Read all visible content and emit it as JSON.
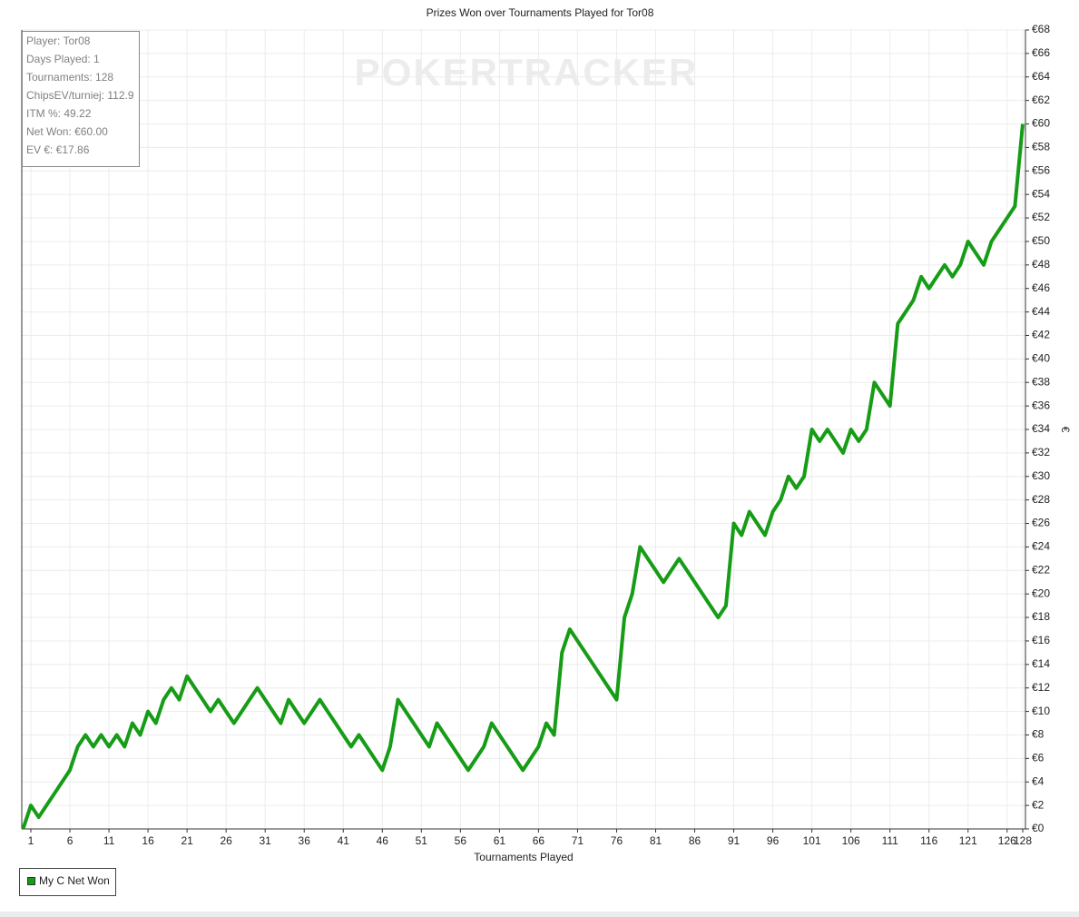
{
  "chart_data": {
    "type": "line",
    "title": "Prizes Won over Tournaments Played for Tor08",
    "watermark": "POKERTRACKER",
    "x_label": "Tournaments Played",
    "y_label": "€",
    "annotations": [
      "Player: Tor08",
      "Days Played: 1",
      "Tournaments: 128",
      "ChipsEV/turniej: 112.9",
      "ITM %: 49.22",
      "Net Won: €60.00",
      "EV €: €17.86"
    ],
    "grid": true,
    "legend": "bottom-left",
    "x": [
      0,
      1,
      2,
      3,
      4,
      5,
      6,
      7,
      8,
      9,
      10,
      11,
      12,
      13,
      14,
      15,
      16,
      17,
      18,
      19,
      20,
      21,
      22,
      23,
      24,
      25,
      26,
      27,
      28,
      29,
      30,
      31,
      32,
      33,
      34,
      35,
      36,
      37,
      38,
      39,
      40,
      41,
      42,
      43,
      44,
      45,
      46,
      47,
      48,
      49,
      50,
      51,
      52,
      53,
      54,
      55,
      56,
      57,
      58,
      59,
      60,
      61,
      62,
      63,
      64,
      65,
      66,
      67,
      68,
      69,
      70,
      71,
      72,
      73,
      74,
      75,
      76,
      77,
      78,
      79,
      80,
      81,
      82,
      83,
      84,
      85,
      86,
      87,
      88,
      89,
      90,
      91,
      92,
      93,
      94,
      95,
      96,
      97,
      98,
      99,
      100,
      101,
      102,
      103,
      104,
      105,
      106,
      107,
      108,
      109,
      110,
      111,
      112,
      113,
      114,
      115,
      116,
      117,
      118,
      119,
      120,
      121,
      122,
      123,
      124,
      125,
      126,
      127,
      128
    ],
    "series": [
      {
        "name": "My C Net Won",
        "color": "#169c16",
        "values": [
          0,
          2,
          1,
          2,
          3,
          4,
          5,
          7,
          8,
          7,
          8,
          7,
          8,
          7,
          9,
          8,
          10,
          9,
          11,
          12,
          11,
          13,
          12,
          11,
          10,
          11,
          10,
          9,
          10,
          11,
          12,
          11,
          10,
          9,
          11,
          10,
          9,
          10,
          11,
          10,
          9,
          8,
          7,
          8,
          7,
          6,
          5,
          7,
          11,
          10,
          9,
          8,
          7,
          9,
          8,
          7,
          6,
          5,
          6,
          7,
          9,
          8,
          7,
          6,
          5,
          6,
          7,
          9,
          8,
          15,
          17,
          16,
          15,
          14,
          13,
          12,
          11,
          18,
          20,
          24,
          23,
          22,
          21,
          22,
          23,
          22,
          21,
          20,
          19,
          18,
          19,
          26,
          25,
          27,
          26,
          25,
          27,
          28,
          30,
          29,
          30,
          34,
          33,
          34,
          33,
          32,
          34,
          33,
          34,
          38,
          37,
          36,
          43,
          44,
          45,
          47,
          46,
          47,
          48,
          47,
          48,
          50,
          49,
          48,
          50,
          51,
          52,
          53,
          60
        ]
      }
    ],
    "xlim": [
      0,
      128
    ],
    "xticks": [
      1,
      6,
      11,
      16,
      21,
      26,
      31,
      36,
      41,
      46,
      51,
      56,
      61,
      66,
      71,
      76,
      81,
      86,
      91,
      96,
      101,
      106,
      111,
      116,
      121,
      126,
      128
    ],
    "ylim": [
      0,
      68
    ],
    "yticks": [
      {
        "value": 0,
        "label": "€0"
      },
      {
        "value": 2,
        "label": "€2"
      },
      {
        "value": 4,
        "label": "€4"
      },
      {
        "value": 6,
        "label": "€6"
      },
      {
        "value": 8,
        "label": "€8"
      },
      {
        "value": 10,
        "label": "€10"
      },
      {
        "value": 12,
        "label": "€12"
      },
      {
        "value": 14,
        "label": "€14"
      },
      {
        "value": 16,
        "label": "€16"
      },
      {
        "value": 18,
        "label": "€18"
      },
      {
        "value": 20,
        "label": "€20"
      },
      {
        "value": 22,
        "label": "€22"
      },
      {
        "value": 24,
        "label": "€24"
      },
      {
        "value": 26,
        "label": "€26"
      },
      {
        "value": 28,
        "label": "€28"
      },
      {
        "value": 30,
        "label": "€30"
      },
      {
        "value": 32,
        "label": "€32"
      },
      {
        "value": 34,
        "label": "€34"
      },
      {
        "value": 36,
        "label": "€36"
      },
      {
        "value": 38,
        "label": "€38"
      },
      {
        "value": 40,
        "label": "€40"
      },
      {
        "value": 42,
        "label": "€42"
      },
      {
        "value": 44,
        "label": "€44"
      },
      {
        "value": 46,
        "label": "€46"
      },
      {
        "value": 48,
        "label": "€48"
      },
      {
        "value": 50,
        "label": "€50"
      },
      {
        "value": 52,
        "label": "€52"
      },
      {
        "value": 54,
        "label": "€54"
      },
      {
        "value": 56,
        "label": "€56"
      },
      {
        "value": 58,
        "label": "€58"
      },
      {
        "value": 60,
        "label": "€60"
      },
      {
        "value": 62,
        "label": "€62"
      },
      {
        "value": 64,
        "label": "€64"
      },
      {
        "value": 66,
        "label": "€66"
      },
      {
        "value": 68,
        "label": "€68"
      }
    ]
  }
}
